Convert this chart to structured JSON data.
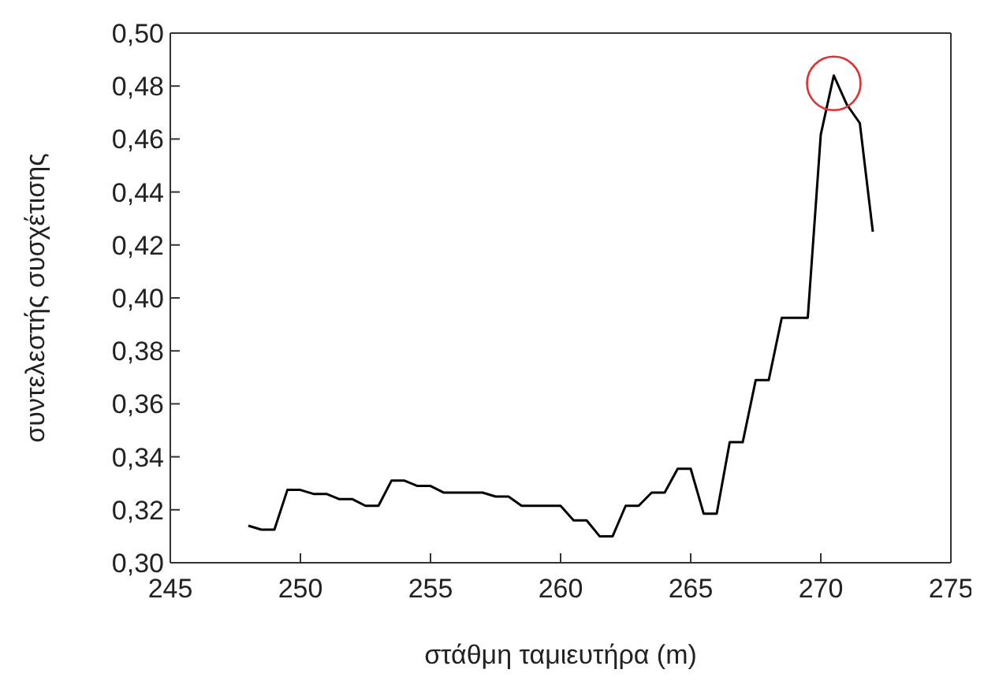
{
  "chart_data": {
    "type": "line",
    "xlabel": "στάθμη ταμιευτήρα (m)",
    "ylabel": "συντελεστής συσχέτισης",
    "x": [
      248,
      248.5,
      249,
      249.5,
      250,
      250.5,
      251,
      251.5,
      252,
      252.5,
      253,
      253.5,
      254,
      254.5,
      255,
      255.5,
      257,
      257.5,
      258,
      258.5,
      260,
      260.5,
      261,
      261.5,
      262,
      262.5,
      263,
      263.5,
      264,
      264.5,
      265,
      265.5,
      266,
      266.5,
      267,
      267.5,
      268,
      268.5,
      269.5,
      270,
      270.5,
      271,
      271.5,
      272
    ],
    "series": [
      {
        "color": "#000000",
        "values": [
          0.314,
          0.3125,
          0.3125,
          0.3275,
          0.3275,
          0.326,
          0.326,
          0.324,
          0.324,
          0.3215,
          0.3215,
          0.331,
          0.331,
          0.329,
          0.329,
          0.3265,
          0.3265,
          0.325,
          0.325,
          0.3215,
          0.3215,
          0.316,
          0.316,
          0.31,
          0.31,
          0.3215,
          0.3215,
          0.3265,
          0.3265,
          0.3355,
          0.3355,
          0.3185,
          0.3185,
          0.3455,
          0.3455,
          0.369,
          0.369,
          0.3925,
          0.3925,
          0.4617,
          0.484,
          0.473,
          0.466,
          0.425
        ]
      }
    ],
    "xlim": [
      245,
      275
    ],
    "xticks": [
      245,
      250,
      255,
      260,
      265,
      270,
      275
    ],
    "ylim": [
      0.3,
      0.5
    ],
    "yticks": [
      {
        "value": 0.3,
        "label": "0,30"
      },
      {
        "value": 0.32,
        "label": "0,32"
      },
      {
        "value": 0.34,
        "label": "0,34"
      },
      {
        "value": 0.36,
        "label": "0,36"
      },
      {
        "value": 0.38,
        "label": "0,38"
      },
      {
        "value": 0.4,
        "label": "0,40"
      },
      {
        "value": 0.42,
        "label": "0,42"
      },
      {
        "value": 0.44,
        "label": "0,44"
      },
      {
        "value": 0.46,
        "label": "0,46"
      },
      {
        "value": 0.48,
        "label": "0,48"
      },
      {
        "value": 0.5,
        "label": "0,50"
      }
    ],
    "grid": false,
    "legend": false,
    "marker": "none",
    "line_style": "solid"
  }
}
